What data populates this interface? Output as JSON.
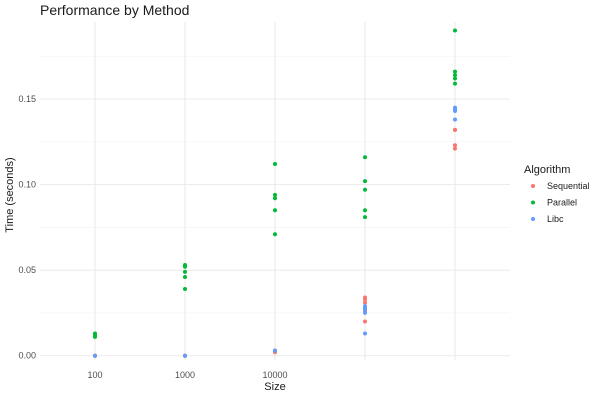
{
  "chart_data": {
    "type": "scatter",
    "title": "Performance by Method",
    "xlabel": "Size",
    "ylabel": "Time (seconds)",
    "x_ticks": [
      "100",
      "1000",
      "10000",
      "",
      ""
    ],
    "y_ticks": [
      0.0,
      0.05,
      0.1,
      0.15
    ],
    "y_tick_labels": [
      "0.00",
      "0.05",
      "0.10",
      "0.15"
    ],
    "ylim": [
      -0.0025,
      0.195
    ],
    "grid": true,
    "legend": {
      "title": "Algorithm",
      "position": "right"
    },
    "series": [
      {
        "name": "Sequential",
        "color": "#F8766D",
        "points": [
          {
            "x": 0,
            "y": 0.0
          },
          {
            "x": 0,
            "y": 0.0
          },
          {
            "x": 0,
            "y": 0.0
          },
          {
            "x": 1,
            "y": 0.0
          },
          {
            "x": 1,
            "y": 0.0
          },
          {
            "x": 1,
            "y": 0.0
          },
          {
            "x": 2,
            "y": 0.002
          },
          {
            "x": 2,
            "y": 0.003
          },
          {
            "x": 2,
            "y": 0.003
          },
          {
            "x": 3,
            "y": 0.02
          },
          {
            "x": 3,
            "y": 0.026
          },
          {
            "x": 3,
            "y": 0.031
          },
          {
            "x": 3,
            "y": 0.033
          },
          {
            "x": 3,
            "y": 0.034
          },
          {
            "x": 4,
            "y": 0.121
          },
          {
            "x": 4,
            "y": 0.123
          },
          {
            "x": 4,
            "y": 0.132
          },
          {
            "x": 4,
            "y": 0.132
          }
        ]
      },
      {
        "name": "Parallel",
        "color": "#00BA38",
        "points": [
          {
            "x": 0,
            "y": 0.011
          },
          {
            "x": 0,
            "y": 0.012
          },
          {
            "x": 0,
            "y": 0.013
          },
          {
            "x": 1,
            "y": 0.039
          },
          {
            "x": 1,
            "y": 0.046
          },
          {
            "x": 1,
            "y": 0.049
          },
          {
            "x": 1,
            "y": 0.052
          },
          {
            "x": 1,
            "y": 0.053
          },
          {
            "x": 2,
            "y": 0.071
          },
          {
            "x": 2,
            "y": 0.085
          },
          {
            "x": 2,
            "y": 0.092
          },
          {
            "x": 2,
            "y": 0.094
          },
          {
            "x": 2,
            "y": 0.112
          },
          {
            "x": 3,
            "y": 0.081
          },
          {
            "x": 3,
            "y": 0.085
          },
          {
            "x": 3,
            "y": 0.097
          },
          {
            "x": 3,
            "y": 0.102
          },
          {
            "x": 3,
            "y": 0.116
          },
          {
            "x": 4,
            "y": 0.159
          },
          {
            "x": 4,
            "y": 0.162
          },
          {
            "x": 4,
            "y": 0.164
          },
          {
            "x": 4,
            "y": 0.166
          },
          {
            "x": 4,
            "y": 0.19
          }
        ]
      },
      {
        "name": "Libc",
        "color": "#619CFF",
        "points": [
          {
            "x": 0,
            "y": 0.0
          },
          {
            "x": 1,
            "y": 0.0
          },
          {
            "x": 2,
            "y": 0.003
          },
          {
            "x": 3,
            "y": 0.013
          },
          {
            "x": 3,
            "y": 0.025
          },
          {
            "x": 3,
            "y": 0.027
          },
          {
            "x": 3,
            "y": 0.028
          },
          {
            "x": 3,
            "y": 0.029
          },
          {
            "x": 4,
            "y": 0.138
          },
          {
            "x": 4,
            "y": 0.143
          },
          {
            "x": 4,
            "y": 0.144
          },
          {
            "x": 4,
            "y": 0.145
          }
        ]
      }
    ]
  }
}
